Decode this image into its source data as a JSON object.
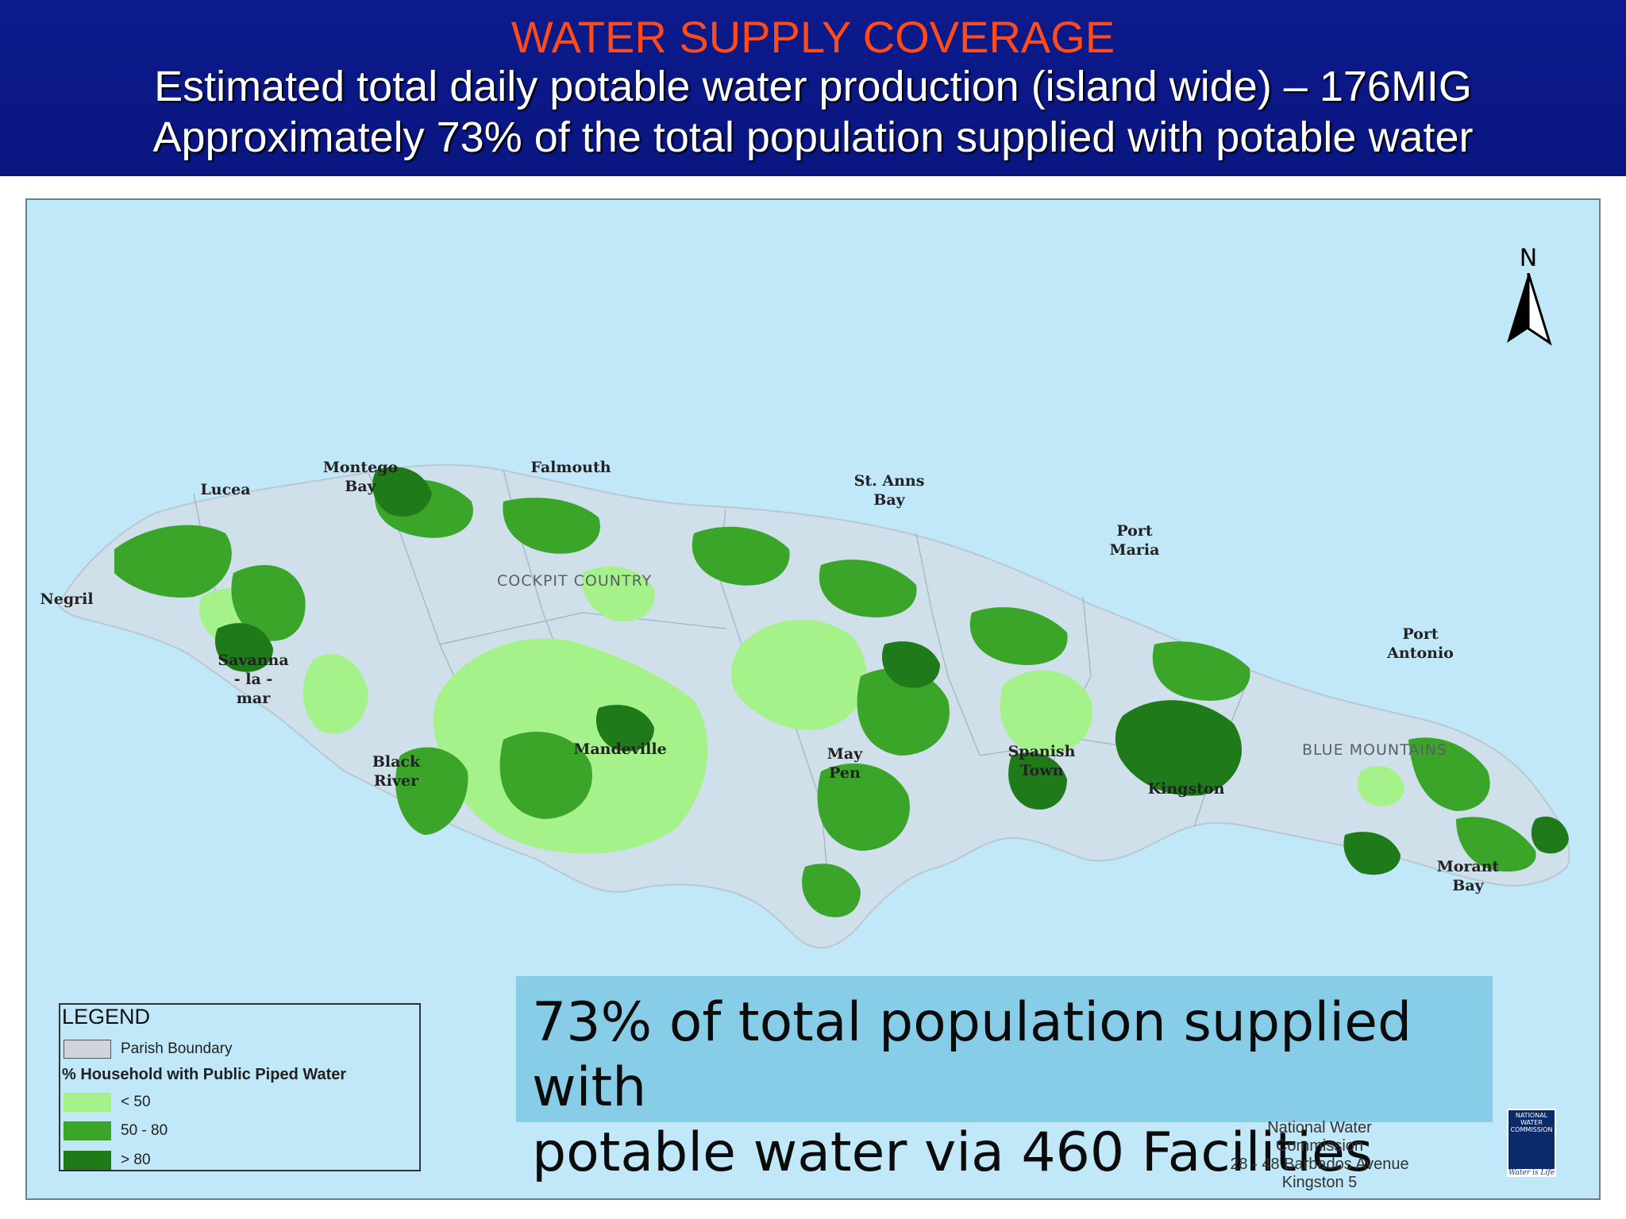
{
  "header": {
    "title": "WATER SUPPLY COVERAGE",
    "line1": "Estimated total daily potable water production (island wide) – 176MIG",
    "line2": "Approximately 73% of the total population supplied with potable water"
  },
  "map": {
    "north_label": "N",
    "places": {
      "negril": "Negril",
      "lucea": "Lucea",
      "montego_bay": "Montego\nBay",
      "falmouth": "Falmouth",
      "st_anns_bay": "St. Anns\nBay",
      "port_maria": "Port\nMaria",
      "port_antonio": "Port\nAntonio",
      "savanna_la_mar": "Savanna\n- la -\nmar",
      "black_river": "Black\nRiver",
      "mandeville": "Mandeville",
      "may_pen": "May\nPen",
      "spanish_town": "Spanish\nTown",
      "kingston": "Kingston",
      "morant_bay": "Morant\nBay"
    },
    "regions": {
      "cockpit_country": "COCKPIT COUNTRY",
      "blue_mountains": "BLUE MOUNTAINS"
    },
    "colors": {
      "sea": "#c1e8f8",
      "land": "#cfe0ea",
      "low_coverage": "#a6f28a",
      "mid_coverage": "#3ba52a",
      "high_coverage": "#1f7a1a"
    }
  },
  "legend": {
    "title": "LEGEND",
    "parish_boundary": "Parish Boundary",
    "heading": "% Household with Public Piped Water",
    "items": [
      {
        "label": "< 50",
        "color": "#a6f28a"
      },
      {
        "label": "50 - 80",
        "color": "#3ba52a"
      },
      {
        "label": "> 80",
        "color": "#1f7a1a"
      }
    ]
  },
  "callout": {
    "line1": "73% of total population supplied with",
    "line2": "potable water via 460 Facilities"
  },
  "credit": {
    "line1": "National Water Commission",
    "line2": "28 - 48 Barbados Avenue",
    "line3": "Kingston 5"
  },
  "logo": {
    "text": "NATIONAL WATER COMMISSION",
    "slogan": "Water is Life"
  }
}
